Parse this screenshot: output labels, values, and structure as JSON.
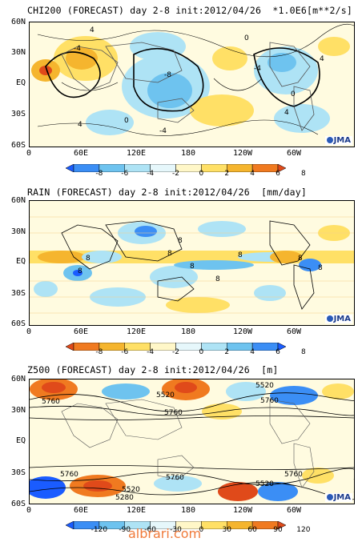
{
  "panels": [
    {
      "title": "CHI200 (FORECAST) day 2-8 init:2012/04/26  *1.0E6[m**2/s]",
      "colorbar_ticks": [
        "-8",
        "-6",
        "-4",
        "-2",
        "0",
        "2",
        "4",
        "6",
        "8"
      ],
      "colorbar_colors": [
        "#1a5cff",
        "#3b8ef5",
        "#6ec3ef",
        "#aee3f5",
        "#e6f7fb",
        "#fff7c8",
        "#ffe066",
        "#f5b52e",
        "#f07a20",
        "#e04a1a"
      ],
      "contour_labels": [
        "4",
        "-4",
        "-8",
        "0",
        "0",
        "4",
        "-4",
        "4",
        "-4",
        "0",
        "4"
      ]
    },
    {
      "title": "RAIN (FORECAST) day 2-8 init:2012/04/26  [mm/day]",
      "colorbar_ticks": [
        "-8",
        "-6",
        "-4",
        "-2",
        "0",
        "2",
        "4",
        "6",
        "8"
      ],
      "colorbar_colors": [
        "#e04a1a",
        "#f07a20",
        "#f5b52e",
        "#ffe066",
        "#fff7c8",
        "#e6f7fb",
        "#aee3f5",
        "#6ec3ef",
        "#3b8ef5",
        "#1a5cff"
      ],
      "contour_labels": [
        "8",
        "8",
        "8",
        "8",
        "8",
        "8",
        "8",
        "8",
        "8"
      ]
    },
    {
      "title": "Z500 (FORECAST) day 2-8 init:2012/04/26  [m]",
      "colorbar_ticks": [
        "-120",
        "-90",
        "-60",
        "-30",
        "0",
        "30",
        "60",
        "90",
        "120"
      ],
      "colorbar_colors": [
        "#1a5cff",
        "#3b8ef5",
        "#6ec3ef",
        "#aee3f5",
        "#e6f7fb",
        "#fff7c8",
        "#ffe066",
        "#f5b52e",
        "#f07a20",
        "#e04a1a"
      ],
      "contour_labels": [
        "5520",
        "5760",
        "5760",
        "5520",
        "5760",
        "5520",
        "5760",
        "5760",
        "5520",
        "5280",
        "5760"
      ]
    }
  ],
  "lat_labels": [
    "60N",
    "30N",
    "EQ",
    "30S",
    "60S"
  ],
  "lon_labels": [
    "0",
    "60E",
    "120E",
    "180",
    "120W",
    "60W"
  ],
  "logo_text": "JMA",
  "watermark": "albrari.com"
}
